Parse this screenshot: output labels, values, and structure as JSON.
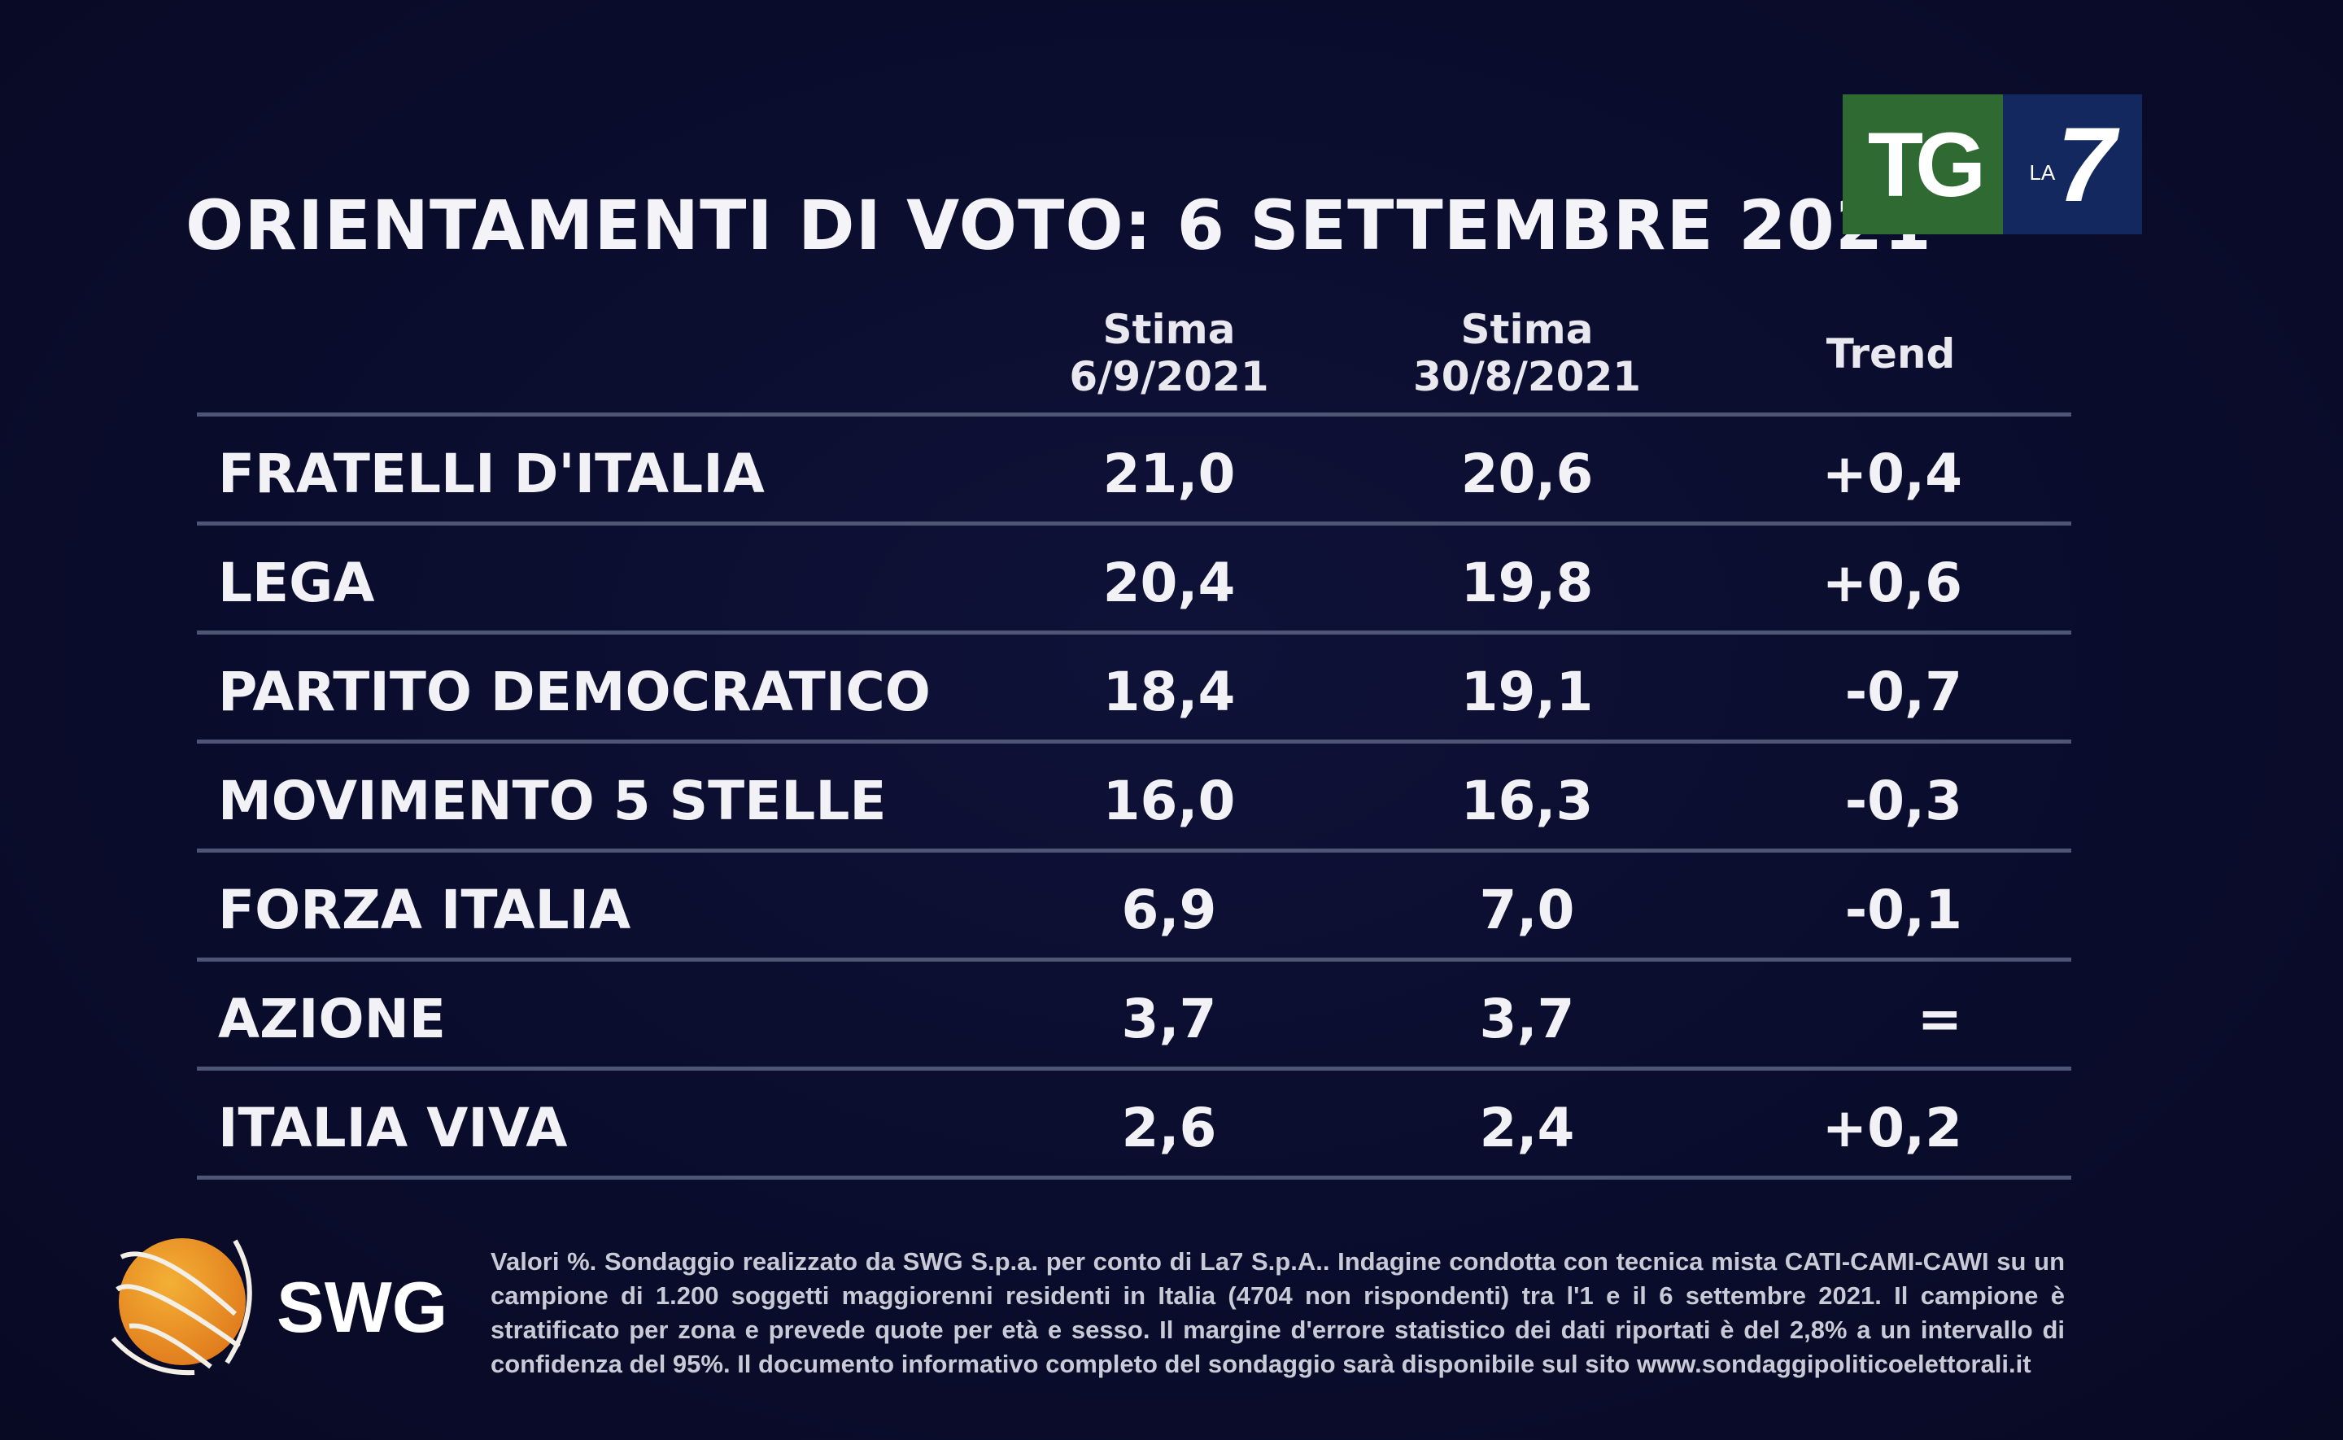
{
  "title": "ORIENTAMENTI DI VOTO: 6 SETTEMBRE 2021",
  "broadcaster_logo": {
    "tg": "TG",
    "la": "LA",
    "seven": "7",
    "colors": {
      "tg_bg": "#2f6a32",
      "la7_bg": "#12285e"
    }
  },
  "columns": [
    {
      "line1": "Stima",
      "line2": "6/9/2021"
    },
    {
      "line1": "Stima",
      "line2": "30/8/2021"
    },
    {
      "line1": "Trend",
      "line2": ""
    }
  ],
  "rows": [
    {
      "party": "FRATELLI D'ITALIA",
      "current": "21,0",
      "previous": "20,6",
      "trend": "+0,4"
    },
    {
      "party": "LEGA",
      "current": "20,4",
      "previous": "19,8",
      "trend": "+0,6"
    },
    {
      "party": "PARTITO DEMOCRATICO",
      "current": "18,4",
      "previous": "19,1",
      "trend": "-0,7"
    },
    {
      "party": "MOVIMENTO 5 STELLE",
      "current": "16,0",
      "previous": "16,3",
      "trend": "-0,3"
    },
    {
      "party": "FORZA ITALIA",
      "current": "6,9",
      "previous": "7,0",
      "trend": "-0,1"
    },
    {
      "party": "AZIONE",
      "current": "3,7",
      "previous": "3,7",
      "trend": "="
    },
    {
      "party": "ITALIA VIVA",
      "current": "2,6",
      "previous": "2,4",
      "trend": "+0,2"
    }
  ],
  "pollster": {
    "name": "SWG",
    "globe_color": "#f0a030"
  },
  "footnote": "Valori %. Sondaggio realizzato da SWG S.p.a. per conto di La7 S.p.A.. Indagine condotta con tecnica mista CATI-CAMI-CAWI su un campione di 1.200 soggetti maggiorenni residenti in Italia (4704 non rispondenti) tra l'1 e il 6 settembre 2021. Il campione è stratificato per zona e prevede quote per età e sesso. Il margine d'errore statistico dei dati riportati è del 2,8% a un intervallo di confidenza del 95%. Il documento informativo completo del sondaggio sarà disponibile sul sito www.sondaggipoliticoelettorali.it"
}
